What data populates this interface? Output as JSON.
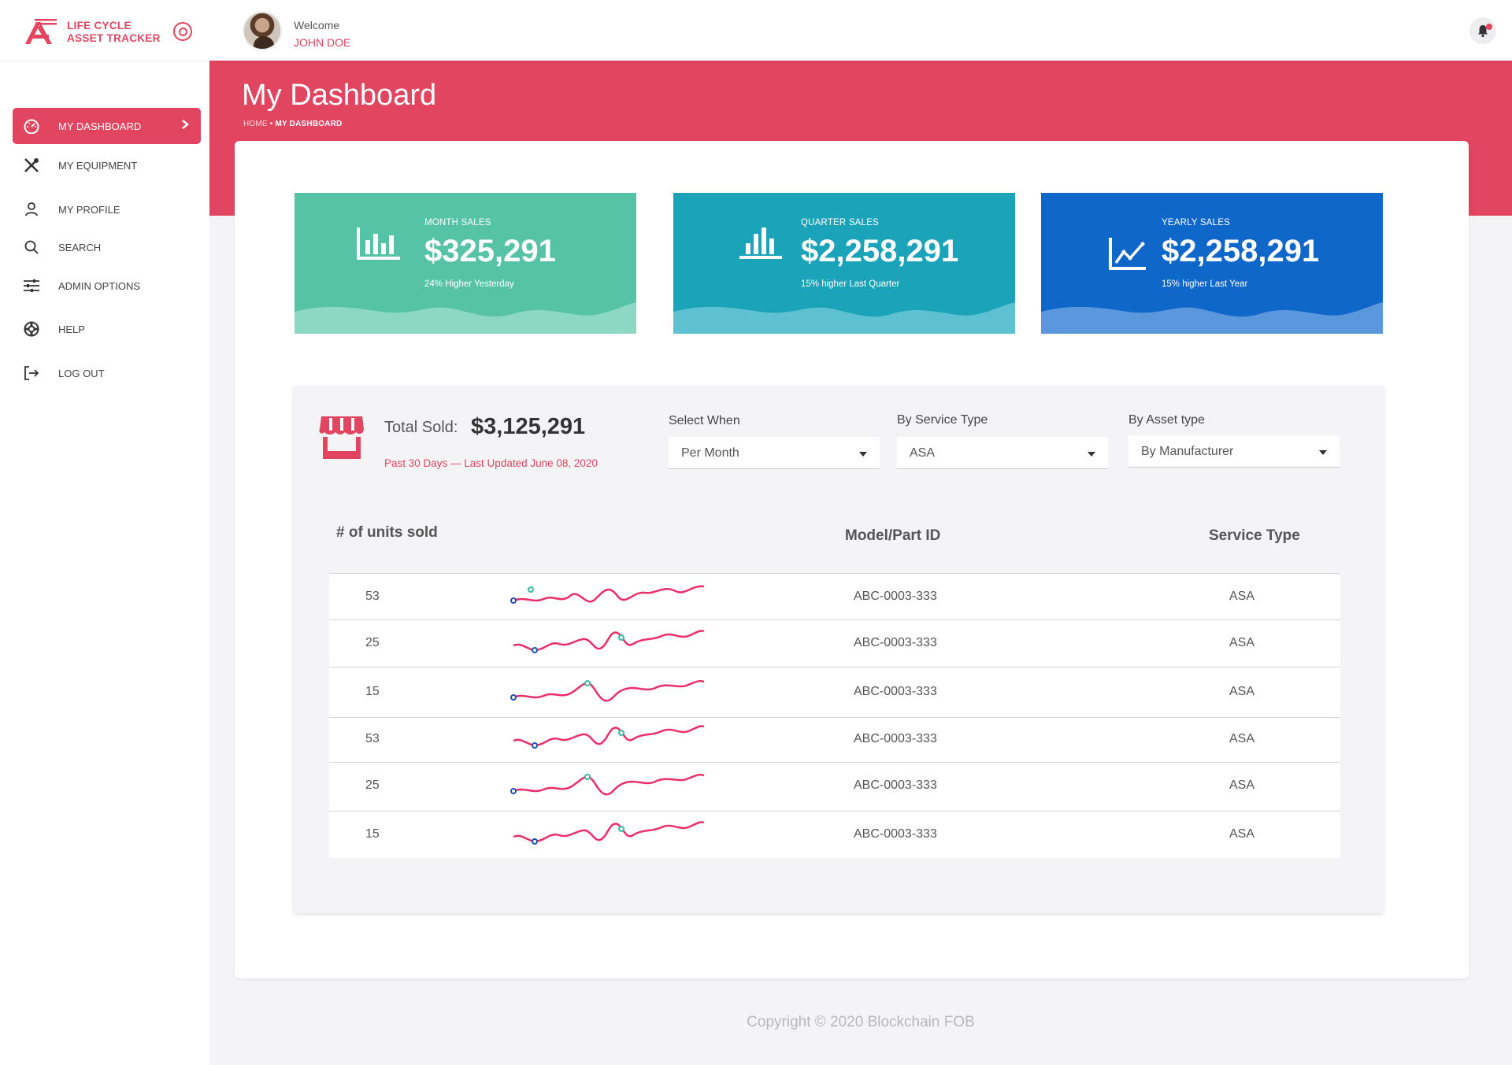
{
  "app": {
    "title_line1": "LIFE CYCLE",
    "title_line2": "ASSET TRACKER",
    "brand_color": "#e2455f"
  },
  "header": {
    "welcome": "Welcome",
    "user_name": "JOHN DOE",
    "notification_icon": "bell-icon"
  },
  "sidebar": {
    "items": [
      {
        "label": "MY DASHBOARD",
        "icon": "speedometer-icon",
        "active": true
      },
      {
        "label": "MY EQUIPMENT",
        "icon": "tools-icon"
      },
      {
        "label": "MY PROFILE",
        "icon": "user-icon"
      },
      {
        "label": "SEARCH",
        "icon": "search-icon"
      },
      {
        "label": "ADMIN OPTIONS",
        "icon": "sliders-icon"
      },
      {
        "label": "HELP",
        "icon": "lifebuoy-icon"
      },
      {
        "label": "LOG OUT",
        "icon": "logout-icon"
      }
    ]
  },
  "page": {
    "title": "My Dashboard",
    "breadcrumb_home": "HOME",
    "breadcrumb_sep": "•",
    "breadcrumb_current": "MY DASHBOARD"
  },
  "stats": [
    {
      "label": "MONTH SALES",
      "value": "$325,291",
      "sub": "24% Higher Yesterday",
      "color": "#56c3a6",
      "wave_color": "#8dd8c3",
      "icon": "bar-chart-icon"
    },
    {
      "label": "QUARTER SALES",
      "value": "$2,258,291",
      "sub": "15% higher Last Quarter",
      "color": "#1ba3b9",
      "wave_color": "#5dc1d2",
      "icon": "bar-chart-icon"
    },
    {
      "label": "YEARLY SALES",
      "value": "$2,258,291",
      "sub": "15% higher Last Year",
      "color": "#0e67c9",
      "wave_color": "#5b97dc",
      "icon": "line-chart-icon"
    }
  ],
  "sales": {
    "total_label": "Total Sold:",
    "total_value": "$3,125,291",
    "subtitle": "Past 30 Days — Last Updated June 08, 2020",
    "filters": [
      {
        "label": "Select When",
        "value": "Per Month"
      },
      {
        "label": "By Service Type",
        "value": "ASA"
      },
      {
        "label": "By Asset type",
        "value": "By Manufacturer"
      }
    ],
    "columns": [
      "# of units sold",
      "Model/Part ID",
      "Service Type"
    ],
    "rows": [
      {
        "units": "53",
        "model": "ABC-0003-333",
        "service": "ASA"
      },
      {
        "units": "25",
        "model": "ABC-0003-333",
        "service": "ASA"
      },
      {
        "units": "15",
        "model": "ABC-0003-333",
        "service": "ASA"
      },
      {
        "units": "53",
        "model": "ABC-0003-333",
        "service": "ASA"
      },
      {
        "units": "25",
        "model": "ABC-0003-333",
        "service": "ASA"
      },
      {
        "units": "15",
        "model": "ABC-0003-333",
        "service": "ASA"
      }
    ]
  },
  "footer": {
    "copyright": "Copyright © 2020 Blockchain FOB"
  }
}
